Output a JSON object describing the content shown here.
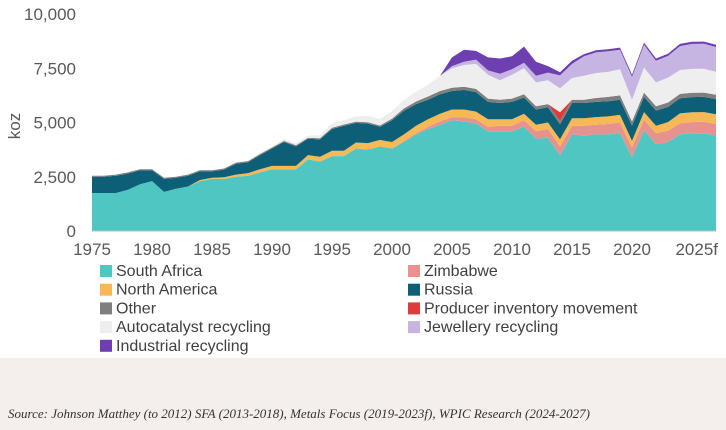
{
  "chart_data": {
    "type": "area",
    "stacked": true,
    "ylabel": "koz",
    "xlabel": "",
    "ylim": [
      0,
      10000
    ],
    "yticks": [
      0,
      2500,
      5000,
      7500,
      10000
    ],
    "ytick_labels": [
      "0",
      "2,500",
      "5,000",
      "7,500",
      "10,000"
    ],
    "xlim": [
      1975,
      2027
    ],
    "xticks": [
      1975,
      1980,
      1985,
      1990,
      1995,
      2000,
      2005,
      2010,
      2015,
      2020,
      2025
    ],
    "xtick_labels": [
      "1975",
      "1980",
      "1985",
      "1990",
      "1995",
      "2000",
      "2005",
      "2010",
      "2015",
      "2020",
      "2025f"
    ],
    "x": [
      1975,
      1976,
      1977,
      1978,
      1979,
      1980,
      1981,
      1982,
      1983,
      1984,
      1985,
      1986,
      1987,
      1988,
      1989,
      1990,
      1991,
      1992,
      1993,
      1994,
      1995,
      1996,
      1997,
      1998,
      1999,
      2000,
      2001,
      2002,
      2003,
      2004,
      2005,
      2006,
      2007,
      2008,
      2009,
      2010,
      2011,
      2012,
      2013,
      2014,
      2015,
      2016,
      2017,
      2018,
      2019,
      2020,
      2021,
      2022,
      2023,
      2024,
      2025,
      2026,
      2027
    ],
    "series": [
      {
        "name": "South Africa",
        "color": "#4fc6c2",
        "values": [
          1750,
          1750,
          1750,
          1900,
          2150,
          2300,
          1800,
          1950,
          2050,
          2300,
          2400,
          2400,
          2500,
          2550,
          2700,
          2850,
          2850,
          2850,
          3300,
          3200,
          3450,
          3450,
          3800,
          3750,
          3900,
          3800,
          4100,
          4450,
          4700,
          4900,
          5100,
          5050,
          4950,
          4600,
          4600,
          4600,
          4800,
          4250,
          4300,
          3500,
          4450,
          4400,
          4450,
          4450,
          4500,
          3400,
          4650,
          4000,
          4100,
          4450,
          4500,
          4500,
          4400
        ]
      },
      {
        "name": "Zimbabwe",
        "color": "#e8928f",
        "values": [
          0,
          0,
          0,
          0,
          0,
          0,
          0,
          0,
          0,
          0,
          0,
          0,
          0,
          0,
          0,
          0,
          0,
          0,
          0,
          0,
          0,
          0,
          0,
          0,
          0,
          0,
          50,
          50,
          100,
          150,
          150,
          200,
          200,
          200,
          250,
          250,
          300,
          350,
          400,
          400,
          400,
          450,
          450,
          480,
          500,
          450,
          480,
          500,
          520,
          520,
          520,
          530,
          530
        ]
      },
      {
        "name": "North America",
        "color": "#f7b955",
        "values": [
          0,
          0,
          0,
          0,
          0,
          0,
          0,
          0,
          0,
          50,
          50,
          80,
          100,
          120,
          150,
          150,
          150,
          150,
          200,
          220,
          250,
          250,
          280,
          300,
          300,
          300,
          300,
          350,
          350,
          350,
          350,
          350,
          350,
          350,
          300,
          300,
          300,
          300,
          300,
          320,
          350,
          350,
          350,
          350,
          350,
          300,
          350,
          350,
          400,
          450,
          450,
          450,
          450
        ]
      },
      {
        "name": "Russia",
        "color": "#0d5f77",
        "values": [
          750,
          750,
          800,
          750,
          650,
          500,
          600,
          500,
          500,
          400,
          300,
          350,
          500,
          500,
          650,
          800,
          1100,
          900,
          750,
          800,
          1000,
          1150,
          900,
          900,
          600,
          1000,
          1100,
          1000,
          900,
          900,
          850,
          900,
          900,
          800,
          750,
          800,
          750,
          700,
          700,
          700,
          700,
          700,
          700,
          700,
          700,
          700,
          700,
          700,
          700,
          700,
          700,
          700,
          700
        ]
      },
      {
        "name": "Other",
        "color": "#7f7f7f",
        "values": [
          50,
          50,
          50,
          50,
          50,
          50,
          50,
          50,
          50,
          50,
          50,
          50,
          50,
          50,
          50,
          50,
          50,
          50,
          50,
          50,
          60,
          60,
          60,
          60,
          60,
          80,
          100,
          120,
          150,
          150,
          150,
          150,
          150,
          150,
          150,
          150,
          150,
          150,
          150,
          150,
          150,
          150,
          180,
          200,
          200,
          200,
          200,
          200,
          200,
          200,
          200,
          200,
          200
        ]
      },
      {
        "name": "Producer inventory movement",
        "color": "#e03b3b",
        "values": [
          0,
          0,
          0,
          0,
          0,
          0,
          0,
          0,
          0,
          0,
          0,
          0,
          0,
          0,
          0,
          0,
          0,
          0,
          0,
          0,
          0,
          0,
          0,
          0,
          0,
          0,
          0,
          0,
          0,
          0,
          0,
          0,
          0,
          0,
          0,
          0,
          0,
          0,
          0,
          400,
          0,
          0,
          0,
          0,
          0,
          0,
          0,
          0,
          0,
          0,
          0,
          0,
          0
        ]
      },
      {
        "name": "Autocatalyst recycling",
        "color": "#eeeeee",
        "values": [
          0,
          0,
          0,
          0,
          0,
          0,
          0,
          0,
          0,
          0,
          0,
          0,
          0,
          0,
          50,
          50,
          100,
          100,
          100,
          150,
          200,
          200,
          250,
          300,
          300,
          350,
          400,
          450,
          550,
          700,
          900,
          1000,
          1150,
          1100,
          900,
          1100,
          1200,
          1100,
          1100,
          1100,
          1000,
          1100,
          1150,
          1150,
          1200,
          1000,
          1150,
          1100,
          1150,
          1100,
          1100,
          1100,
          1050
        ]
      },
      {
        "name": "Jewellery recycling",
        "color": "#c6b5e2",
        "values": [
          0,
          0,
          0,
          0,
          0,
          0,
          0,
          0,
          0,
          0,
          0,
          0,
          0,
          0,
          0,
          0,
          0,
          0,
          0,
          0,
          0,
          0,
          0,
          0,
          0,
          0,
          0,
          0,
          0,
          0,
          100,
          150,
          200,
          200,
          300,
          250,
          250,
          300,
          350,
          600,
          650,
          900,
          950,
          950,
          900,
          1050,
          1050,
          1000,
          1000,
          1100,
          1150,
          1150,
          1150
        ]
      },
      {
        "name": "Industrial recycling",
        "color": "#6d3fb0",
        "values": [
          0,
          0,
          0,
          0,
          0,
          0,
          0,
          0,
          0,
          0,
          0,
          0,
          0,
          0,
          0,
          0,
          0,
          0,
          0,
          0,
          0,
          0,
          0,
          0,
          0,
          0,
          0,
          0,
          0,
          0,
          400,
          550,
          400,
          600,
          700,
          600,
          750,
          650,
          300,
          150,
          150,
          100,
          100,
          100,
          100,
          100,
          100,
          100,
          100,
          100,
          100,
          100,
          100
        ]
      }
    ],
    "legend": {
      "placement": "bottom",
      "columns": [
        [
          "South Africa",
          "North America",
          "Other",
          "Autocatalyst recycling",
          "Industrial recycling"
        ],
        [
          "Zimbabwe",
          "Russia",
          "Producer inventory movement",
          "Jewellery recycling"
        ]
      ]
    }
  },
  "source": "Source: Johnson Matthey (to 2012) SFA (2013-2018), Metals Focus (2019-2023f), WPIC Research (2024-2027)"
}
